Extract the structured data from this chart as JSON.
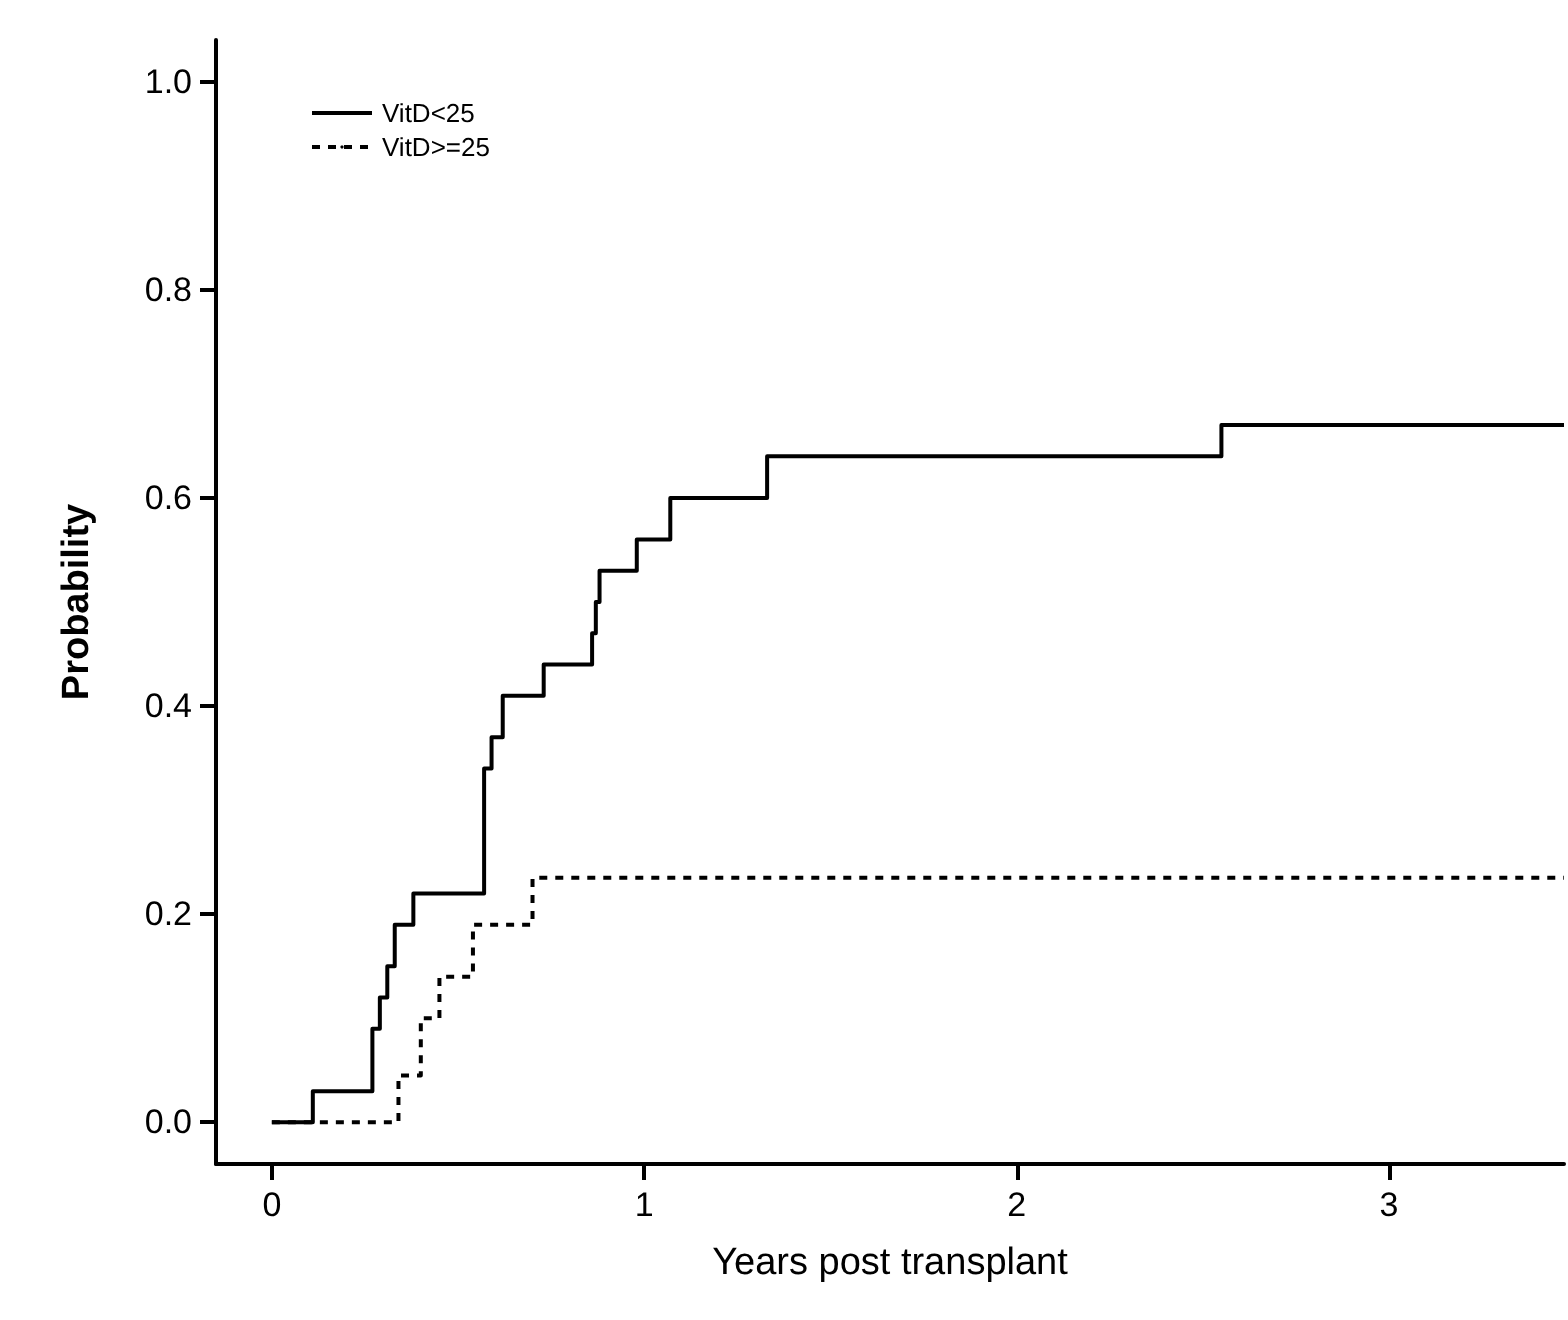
{
  "chart_data": {
    "type": "step",
    "xlabel": "Years post transplant",
    "ylabel": "Probability",
    "xlim": [
      -0.15,
      3.47
    ],
    "xticks": [
      0,
      1,
      2,
      3
    ],
    "ylim": [
      -0.04,
      1.04
    ],
    "yticks": [
      {
        "value": 0,
        "label": "0.0"
      },
      0.2,
      0.4,
      0.6,
      0.8,
      {
        "value": 1,
        "label": "1.0"
      }
    ],
    "grid": false,
    "legend": "top left",
    "series": [
      {
        "name": "VitD<25",
        "color": "#000000",
        "line_style": "solid",
        "x": [
          0,
          0.11,
          0.27,
          0.29,
          0.31,
          0.33,
          0.38,
          0.57,
          0.59,
          0.62,
          0.73,
          0.86,
          0.87,
          0.88,
          0.98,
          1.07,
          1.33,
          2.55,
          3.47
        ],
        "values": [
          0,
          0.03,
          0.09,
          0.12,
          0.15,
          0.19,
          0.22,
          0.34,
          0.37,
          0.41,
          0.44,
          0.47,
          0.5,
          0.53,
          0.56,
          0.6,
          0.64,
          0.67,
          0.67
        ]
      },
      {
        "name": "VitD>=25",
        "color": "#000000",
        "line_style": "dashed",
        "x": [
          0,
          0.34,
          0.4,
          0.45,
          0.54,
          0.7,
          3.47
        ],
        "values": [
          0,
          0.045,
          0.1,
          0.14,
          0.19,
          0.235,
          0.235
        ]
      }
    ]
  }
}
